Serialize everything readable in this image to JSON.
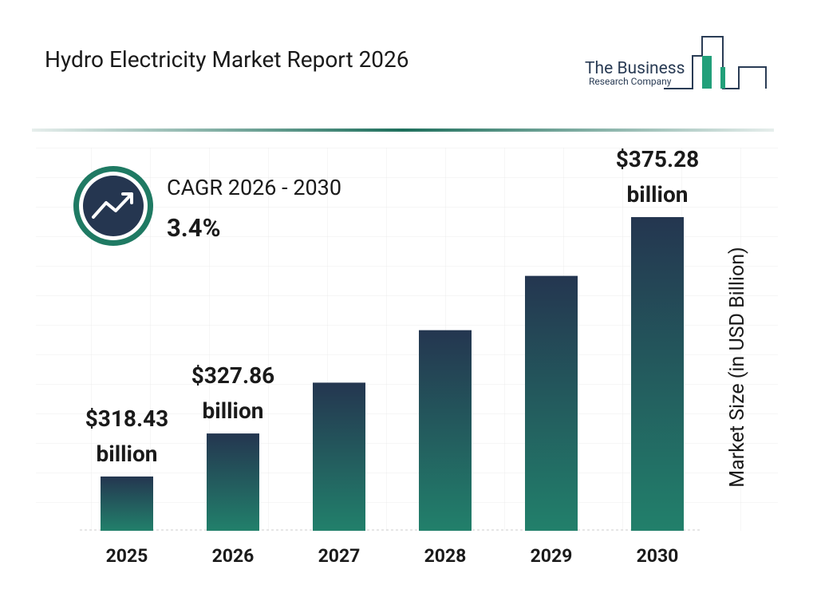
{
  "chart_data": {
    "type": "bar",
    "title": "Hydro Electricity Market Report 2026",
    "logo": {
      "line1": "The Business",
      "line2": "Research Company"
    },
    "cagr_label": "CAGR 2026 - 2030",
    "cagr_value": "3.4%",
    "y_label": "Market Size (in USD Billion)",
    "categories": [
      "2025",
      "2026",
      "2027",
      "2028",
      "2029",
      "2030"
    ],
    "values": [
      318.43,
      327.86,
      339.0,
      350.5,
      362.4,
      375.28
    ],
    "value_labels": [
      "$318.43 billion",
      "$327.86 billion",
      null,
      null,
      null,
      "$375.28 billion"
    ],
    "colors": {
      "top": "#243650",
      "bottom": "#22806b"
    }
  }
}
